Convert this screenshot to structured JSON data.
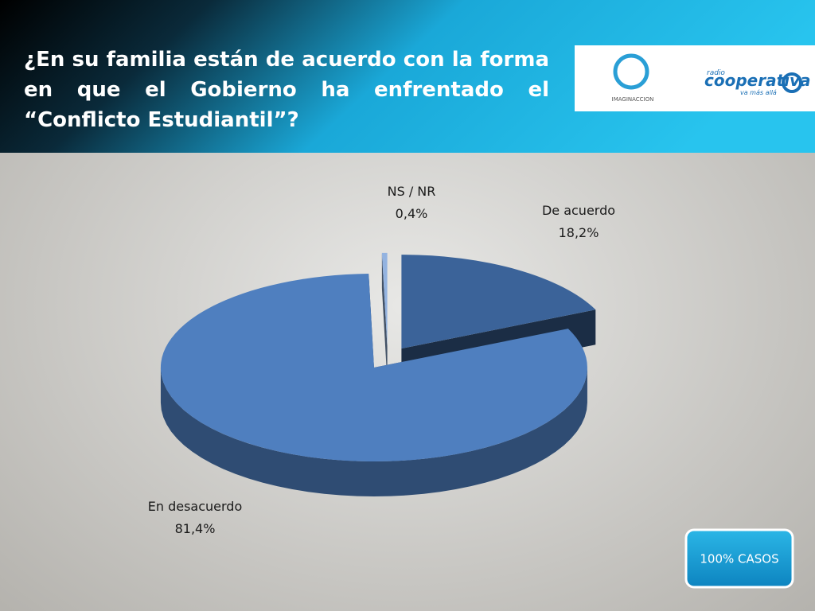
{
  "chart_data": {
    "type": "pie",
    "title": "¿En su familia están de acuerdo con la forma en que el Gobierno ha enfrentado el “Conflicto Estudiantil”?",
    "categories": [
      "De acuerdo",
      "En desacuerdo",
      "NS / NR"
    ],
    "values": [
      18.2,
      81.4,
      0.4
    ],
    "value_labels": [
      "18,2%",
      "81,4%",
      "0,4%"
    ],
    "colors": [
      "#3b6399",
      "#4f7fbf",
      "#93b3e0"
    ]
  },
  "badge": "100% CASOS",
  "logos": [
    "IMAGINACCION",
    "radio",
    "cooperativa",
    "va más allá"
  ]
}
